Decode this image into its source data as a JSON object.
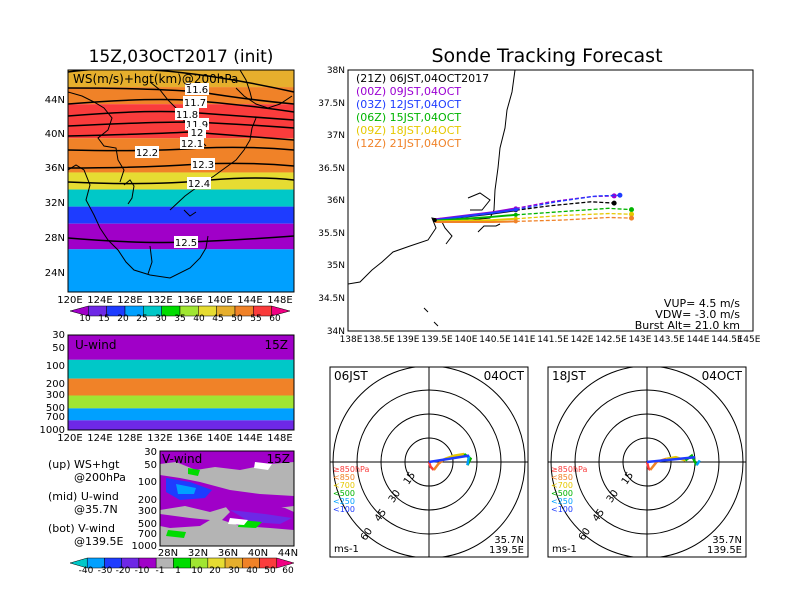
{
  "left_panel": {
    "title": "15Z,03OCT2017 (init)",
    "ws_label": "WS(m/s)+hgt(km)@200hPa",
    "contours": [
      "11.6",
      "11.7",
      "11.8",
      "11.9",
      "12",
      "12.1",
      "12.2",
      "12.3",
      "12.4",
      "12.5"
    ],
    "lat_ticks": [
      "44N",
      "40N",
      "36N",
      "32N",
      "28N",
      "24N"
    ],
    "lon_ticks": [
      "120E",
      "124E",
      "128E",
      "132E",
      "136E",
      "140E",
      "144E",
      "148E"
    ],
    "colorbar_ticks": [
      "10",
      "15",
      "20",
      "25",
      "30",
      "35",
      "40",
      "45",
      "50",
      "55",
      "60"
    ],
    "colorbar_colors": [
      "#a000c8",
      "#6e28e6",
      "#1e3cff",
      "#00a0ff",
      "#00c8c8",
      "#00dc00",
      "#a0e632",
      "#e6dc32",
      "#e6af2d",
      "#f08228",
      "#fa3c3c",
      "#f00082"
    ]
  },
  "u_panel": {
    "label": "U-wind",
    "time": "15Z",
    "p_ticks": [
      "30",
      "50",
      "100",
      "200",
      "300",
      "500",
      "700",
      "1000"
    ],
    "lon_ticks": [
      "120E",
      "124E",
      "128E",
      "132E",
      "136E",
      "140E",
      "144E",
      "148E"
    ]
  },
  "v_panel": {
    "label": "V-wind",
    "time": "15Z",
    "p_ticks": [
      "30",
      "50",
      "100",
      "200",
      "300",
      "500",
      "700",
      "1000"
    ],
    "lat_ticks": [
      "28N",
      "32N",
      "36N",
      "40N",
      "44N"
    ],
    "colorbar_ticks": [
      "-40",
      "-30",
      "-20",
      "-10",
      "-1",
      "1",
      "10",
      "20",
      "30",
      "40",
      "50",
      "60"
    ],
    "colorbar_colors": [
      "#00c8c8",
      "#00a0ff",
      "#1e3cff",
      "#6e28e6",
      "#a000c8",
      "#b4b4b4",
      "#00dc00",
      "#a0e632",
      "#e6dc32",
      "#e6af2d",
      "#f08228",
      "#fa3c3c",
      "#f00082"
    ]
  },
  "notes": {
    "up": [
      "(up) WS+hgt",
      "@200hPa"
    ],
    "mid": [
      "(mid) U-wind",
      "@35.7N"
    ],
    "bot": [
      "(bot) V-wind",
      "@139.5E"
    ]
  },
  "track_panel": {
    "title": "Sonde Tracking Forecast",
    "legend": [
      {
        "text": "(21Z)  06JST,04OCT2017",
        "color": "#000000"
      },
      {
        "text": "(00Z)  09JST,04OCT",
        "color": "#9b00d2"
      },
      {
        "text": "(03Z)  12JST,04OCT",
        "color": "#1e3cff"
      },
      {
        "text": "(06Z)  15JST,04OCT",
        "color": "#00b400"
      },
      {
        "text": "(09Z)  18JST,04OCT",
        "color": "#e6c800"
      },
      {
        "text": "(12Z)  21JST,04OCT",
        "color": "#f08228"
      }
    ],
    "lat_ticks": [
      "38N",
      "37.5N",
      "37N",
      "36.5N",
      "36N",
      "35.5N",
      "35N",
      "34.5N",
      "34N"
    ],
    "lon_ticks": [
      "138E",
      "138.5E",
      "139E",
      "139.5E",
      "140E",
      "140.5E",
      "141E",
      "141.5E",
      "142E",
      "142.5E",
      "143E",
      "143.5E",
      "144E",
      "144.5E",
      "145E"
    ],
    "info": [
      "VUP= 4.5 m/s",
      "VDW= -3.0 m/s",
      "Burst Alt= 21.0 km"
    ]
  },
  "hodo_left": {
    "time": "06JST",
    "date": "04OCT",
    "ring_labels": [
      "15",
      "30",
      "45",
      "60"
    ],
    "levels": [
      "≥850hPa",
      "<850",
      "<700",
      "<500",
      "<250",
      "<100"
    ],
    "level_colors": [
      "#fa3c3c",
      "#f08228",
      "#e6c800",
      "#00b400",
      "#00a0ff",
      "#1e3cff"
    ],
    "unit": "ms-1",
    "loc": [
      "35.7N",
      "139.5E"
    ]
  },
  "hodo_right": {
    "time": "18JST",
    "date": "04OCT",
    "ring_labels": [
      "15",
      "30",
      "45",
      "60"
    ],
    "levels": [
      "≥850hPa",
      "<850",
      "<700",
      "<500",
      "<250",
      "<100"
    ],
    "level_colors": [
      "#fa3c3c",
      "#f08228",
      "#e6c800",
      "#00b400",
      "#00a0ff",
      "#1e3cff"
    ],
    "unit": "ms-1",
    "loc": [
      "35.7N",
      "139.5E"
    ]
  },
  "chart_data": [
    {
      "type": "heatmap",
      "title": "15Z,03OCT2017 (init)",
      "variable": "WS(m/s)+hgt(km)@200hPa",
      "x_range": [
        "120E",
        "150E"
      ],
      "y_range": [
        "22N",
        "48N"
      ],
      "colorbar": [
        10,
        15,
        20,
        25,
        30,
        35,
        40,
        45,
        50,
        55,
        60
      ],
      "bands_by_latitude": [
        {
          "lat": "46-48N",
          "ws": 45
        },
        {
          "lat": "44-46N",
          "ws": 52
        },
        {
          "lat": "40-44N",
          "ws": 58
        },
        {
          "lat": "36-40N",
          "ws": 50
        },
        {
          "lat": "34-36N",
          "ws": 40
        },
        {
          "lat": "32-34N",
          "ws": 28
        },
        {
          "lat": "30-32N",
          "ws": 15
        },
        {
          "lat": "27-30N",
          "ws": 8
        },
        {
          "lat": "22-27N",
          "ws": 20
        }
      ],
      "height_contours_km": [
        11.6,
        11.7,
        11.8,
        11.9,
        12.0,
        12.1,
        12.2,
        12.3,
        12.4,
        12.5
      ]
    },
    {
      "type": "heatmap",
      "title": "U-wind",
      "cross_section": "@35.7N",
      "x_range": [
        "120E",
        "150E"
      ],
      "y_range_hPa": [
        1000,
        30
      ],
      "bands_by_pressure": [
        {
          "p": "30-75",
          "u": 0
        },
        {
          "p": "75-150",
          "u": 25
        },
        {
          "p": "150-280",
          "u": 50
        },
        {
          "p": "280-450",
          "u": 35
        },
        {
          "p": "450-700",
          "u": 20
        },
        {
          "p": "700-1000",
          "u": 10
        }
      ]
    },
    {
      "type": "heatmap",
      "title": "V-wind",
      "cross_section": "@139.5E",
      "x_range": [
        "26N",
        "44N"
      ],
      "y_range_hPa": [
        1000,
        30
      ],
      "colorbar": [
        -40,
        -30,
        -20,
        -10,
        -1,
        1,
        10,
        20,
        30,
        40,
        50,
        60
      ]
    },
    {
      "type": "line",
      "title": "Sonde Tracking Forecast",
      "x_range": [
        138,
        145
      ],
      "y_range": [
        34,
        38
      ],
      "launch": {
        "lon": 139.5,
        "lat": 35.7
      },
      "series": [
        {
          "name": "(21Z)  06JST,04OCT2017",
          "x": [
            139.5,
            140.5,
            140.9,
            141.5,
            142.2,
            142.6
          ],
          "y": [
            35.7,
            35.8,
            35.85,
            35.92,
            35.98,
            35.96
          ]
        },
        {
          "name": "(00Z)  09JST,04OCT",
          "x": [
            139.5,
            140.5,
            140.9,
            141.5,
            142.2,
            142.6
          ],
          "y": [
            35.71,
            35.82,
            35.88,
            35.98,
            36.06,
            36.07
          ]
        },
        {
          "name": "(03Z)  12JST,04OCT",
          "x": [
            139.5,
            140.5,
            140.9,
            141.6,
            142.3,
            142.7
          ],
          "y": [
            35.7,
            35.81,
            35.86,
            35.98,
            36.07,
            36.08
          ]
        },
        {
          "name": "(06Z)  15JST,04OCT",
          "x": [
            139.5,
            140.5,
            140.9,
            141.7,
            142.5,
            142.9
          ],
          "y": [
            35.69,
            35.75,
            35.78,
            35.83,
            35.88,
            35.86
          ]
        },
        {
          "name": "(09Z)  18JST,04OCT",
          "x": [
            139.5,
            140.5,
            140.9,
            141.7,
            142.5,
            142.9
          ],
          "y": [
            35.68,
            35.7,
            35.72,
            35.77,
            35.8,
            35.79
          ]
        },
        {
          "name": "(12Z)  21JST,04OCT",
          "x": [
            139.5,
            140.5,
            140.9,
            141.7,
            142.5,
            142.9
          ],
          "y": [
            35.67,
            35.67,
            35.68,
            35.7,
            35.74,
            35.73
          ]
        }
      ]
    },
    {
      "type": "line",
      "title": "Hodograph 06JST 04OCT",
      "rings_ms": [
        15,
        30,
        45,
        60
      ],
      "series": [
        {
          "name": "≥850hPa",
          "u": [
            0,
            1,
            3
          ],
          "v": [
            0,
            -3,
            -5
          ]
        },
        {
          "name": "<850",
          "u": [
            3,
            6,
            10
          ],
          "v": [
            -5,
            -1,
            2
          ]
        },
        {
          "name": "<700",
          "u": [
            10,
            16,
            22
          ],
          "v": [
            2,
            4,
            5
          ]
        },
        {
          "name": "<500",
          "u": [
            22,
            26,
            24
          ],
          "v": [
            5,
            2,
            -2
          ]
        },
        {
          "name": "<250",
          "u": [
            24,
            25
          ],
          "v": [
            -2,
            4
          ]
        },
        {
          "name": "<100",
          "u": [
            0,
            25
          ],
          "v": [
            0,
            4
          ]
        }
      ]
    },
    {
      "type": "line",
      "title": "Hodograph 18JST 04OCT",
      "rings_ms": [
        15,
        30,
        45,
        60
      ],
      "series": [
        {
          "name": "≥850hPa",
          "u": [
            0,
            1,
            2
          ],
          "v": [
            0,
            -4,
            -5
          ]
        },
        {
          "name": "<850",
          "u": [
            2,
            6,
            12
          ],
          "v": [
            -5,
            0,
            2
          ]
        },
        {
          "name": "<700",
          "u": [
            12,
            18,
            24
          ],
          "v": [
            2,
            3,
            1
          ]
        },
        {
          "name": "<500",
          "u": [
            24,
            28,
            31
          ],
          "v": [
            1,
            4,
            -2
          ]
        },
        {
          "name": "<250",
          "u": [
            31,
            33
          ],
          "v": [
            -2,
            1
          ]
        },
        {
          "name": "<100",
          "u": [
            0,
            30
          ],
          "v": [
            0,
            3
          ]
        }
      ]
    }
  ]
}
